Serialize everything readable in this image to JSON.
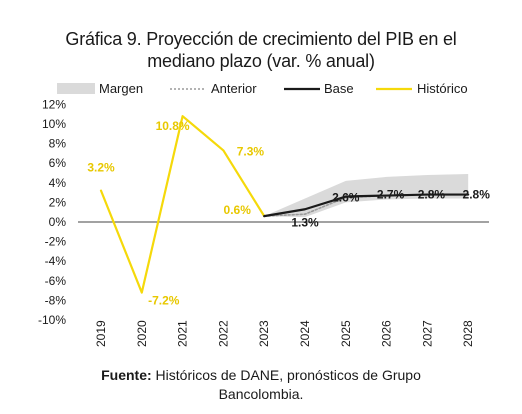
{
  "title": {
    "line1": "Gráfica 9. Proyección de crecimiento del PIB en el",
    "line2": "mediano plazo (var. % anual)"
  },
  "legend": {
    "position": "top",
    "items": [
      {
        "key": "band",
        "label": "Margen"
      },
      {
        "key": "anterior",
        "label": "Anterior"
      },
      {
        "key": "base",
        "label": "Base"
      },
      {
        "key": "historico",
        "label": "Histórico"
      }
    ]
  },
  "source": {
    "prefix": "Fuente:",
    "text": " Históricos de DANE, pronósticos de Grupo",
    "line2": "Bancolombia."
  },
  "colors": {
    "historico": "#f5d90a",
    "base": "#1a1a1a",
    "anterior": "#9a9a9a",
    "band": "#dadada",
    "label_yellow": "#e8c800",
    "label_dark": "#1a1a1a"
  },
  "chart_data": {
    "type": "line",
    "categories": [
      "2019",
      "2020",
      "2021",
      "2022",
      "2023",
      "2024",
      "2025",
      "2026",
      "2027",
      "2028"
    ],
    "ylim": [
      -10,
      12
    ],
    "yticks": [
      -10,
      -8,
      -6,
      -4,
      -2,
      0,
      2,
      4,
      6,
      8,
      10,
      12
    ],
    "ytick_labels": [
      "-10%",
      "-8%",
      "-6%",
      "-4%",
      "-2%",
      "0%",
      "2%",
      "4%",
      "6%",
      "8%",
      "10%",
      "12%"
    ],
    "grid": false,
    "band": {
      "name": "Margen",
      "x": [
        "2023",
        "2024",
        "2025",
        "2026",
        "2027",
        "2028"
      ],
      "lower": [
        0.6,
        0.5,
        2.0,
        2.3,
        2.4,
        2.4
      ],
      "upper": [
        0.6,
        2.4,
        4.2,
        4.6,
        4.8,
        4.9
      ]
    },
    "series": [
      {
        "name": "Histórico",
        "x": [
          "2019",
          "2020",
          "2021",
          "2022",
          "2023"
        ],
        "values": [
          3.2,
          -7.2,
          10.8,
          7.3,
          0.6
        ]
      },
      {
        "name": "Anterior",
        "x": [
          "2023",
          "2024",
          "2025",
          "2026",
          "2027",
          "2028"
        ],
        "values": [
          0.6,
          0.8,
          2.5,
          2.7,
          2.8,
          2.8
        ]
      },
      {
        "name": "Base",
        "x": [
          "2023",
          "2024",
          "2025",
          "2026",
          "2027",
          "2028"
        ],
        "values": [
          0.6,
          1.3,
          2.6,
          2.7,
          2.8,
          2.8
        ]
      }
    ],
    "data_labels": [
      {
        "x": "2019",
        "y": 3.2,
        "text": "3.2%",
        "series": "Histórico"
      },
      {
        "x": "2020",
        "y": -7.2,
        "text": "-7.2%",
        "series": "Histórico"
      },
      {
        "x": "2021",
        "y": 10.8,
        "text": "10.8%",
        "series": "Histórico"
      },
      {
        "x": "2022",
        "y": 7.3,
        "text": "7.3%",
        "series": "Histórico"
      },
      {
        "x": "2023",
        "y": 0.6,
        "text": "0.6%",
        "series": "Histórico"
      },
      {
        "x": "2024",
        "y": 1.3,
        "text": "1.3%",
        "series": "Base"
      },
      {
        "x": "2025",
        "y": 2.6,
        "text": "2.6%",
        "series": "Base"
      },
      {
        "x": "2026",
        "y": 2.7,
        "text": "2.7%",
        "series": "Base"
      },
      {
        "x": "2027",
        "y": 2.8,
        "text": "2.8%",
        "series": "Base"
      },
      {
        "x": "2028",
        "y": 2.8,
        "text": "2.8%",
        "series": "Base"
      }
    ]
  }
}
